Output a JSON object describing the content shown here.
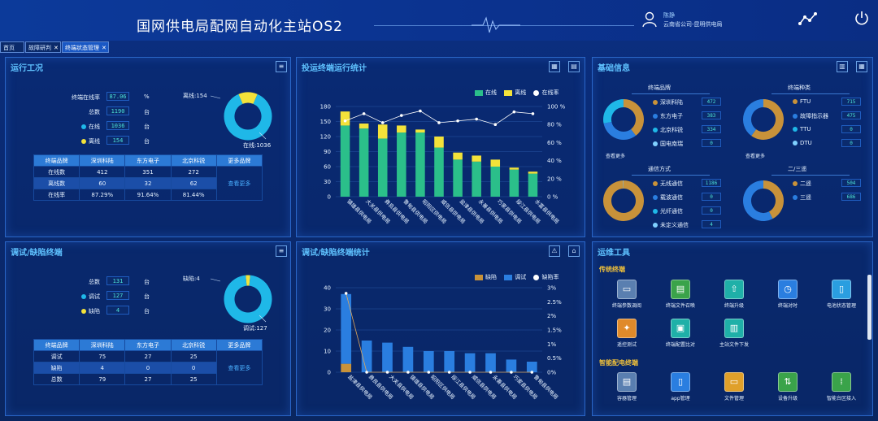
{
  "header": {
    "title": "国网供电局配网自动化主站OS2",
    "user_name": "陈静",
    "user_org": "云南省公司-昆明供电局"
  },
  "tabs": [
    {
      "label": "首页"
    },
    {
      "label": "故障研判"
    },
    {
      "label": "终端状态管理"
    }
  ],
  "panel_run": {
    "title": "运行工况",
    "rows": [
      {
        "label": "终端在线率",
        "value": "87.06",
        "unit": "%"
      },
      {
        "label": "总数",
        "value": "1190",
        "unit": "台"
      },
      {
        "label": "在线",
        "value": "1036",
        "unit": "台"
      },
      {
        "label": "离线",
        "value": "154",
        "unit": "台"
      }
    ],
    "donut": {
      "offline_label": "离线:154",
      "online_label": "在线:1036",
      "offline": 154,
      "online": 1036
    },
    "table": {
      "headers": [
        "终端品牌",
        "深圳科陆",
        "东方电子",
        "北京科锐",
        "更多品牌"
      ],
      "rows": [
        {
          "name": "在线数",
          "vals": [
            "412",
            "351",
            "272"
          ]
        },
        {
          "name": "离线数",
          "vals": [
            "60",
            "32",
            "62"
          ]
        },
        {
          "name": "在线率",
          "vals": [
            "87.29%",
            "91.64%",
            "81.44%"
          ]
        }
      ],
      "more": "查看更多"
    }
  },
  "panel_debug": {
    "title": "调试/缺陷终端",
    "rows": [
      {
        "label": "总数",
        "value": "131",
        "unit": "台"
      },
      {
        "label": "调试",
        "value": "127",
        "unit": "台"
      },
      {
        "label": "缺陷",
        "value": "4",
        "unit": "台"
      }
    ],
    "donut": {
      "defect_label": "缺陷:4",
      "debug_label": "调试:127",
      "defect": 4,
      "debug": 127
    },
    "table": {
      "headers": [
        "终端品牌",
        "深圳科陆",
        "东方电子",
        "北京科锐",
        "更多品牌"
      ],
      "rows": [
        {
          "name": "调试",
          "vals": [
            "75",
            "27",
            "25"
          ]
        },
        {
          "name": "缺陷",
          "vals": [
            "4",
            "0",
            "0"
          ]
        },
        {
          "name": "总数",
          "vals": [
            "79",
            "27",
            "25"
          ]
        }
      ],
      "more": "查看更多"
    }
  },
  "chart_run": {
    "title": "投运终端运行统计",
    "legend": [
      "在线",
      "离线",
      "在线率"
    ],
    "colors": {
      "online": "#2bbf8a",
      "offline": "#f3e23a",
      "rate": "#ffffff"
    },
    "chart_data": {
      "type": "bar",
      "categories": [
        "镇雄县供电局",
        "大关县供电局",
        "彝良县供电局",
        "鲁甸县供电局",
        "昭阳区供电局",
        "威信县供电局",
        "盐津县供电局",
        "永善县供电局",
        "巧家县供电局",
        "绥江县供电局",
        "水富县供电局"
      ],
      "series": [
        {
          "name": "在线",
          "values": [
            142,
            136,
            116,
            128,
            128,
            98,
            74,
            70,
            60,
            54,
            46
          ]
        },
        {
          "name": "离线",
          "values": [
            28,
            10,
            28,
            14,
            6,
            22,
            14,
            12,
            14,
            4,
            4
          ]
        },
        {
          "name": "在线率",
          "values": [
            84,
            92,
            82,
            90,
            95,
            82,
            84,
            86,
            80,
            94,
            92
          ]
        }
      ],
      "ylim": [
        0,
        180
      ],
      "y_ticks": [
        0,
        30,
        60,
        90,
        120,
        150,
        180
      ],
      "y2_ticks": [
        "0 %",
        "20 %",
        "40 %",
        "60 %",
        "80 %",
        "100 %"
      ]
    }
  },
  "chart_debug": {
    "title": "调试/缺陷终端统计",
    "legend": [
      "缺陷",
      "调试",
      "缺陷率"
    ],
    "colors": {
      "defect": "#c8923a",
      "debug": "#2a7ee0",
      "rate": "#ffffff"
    },
    "chart_data": {
      "type": "bar",
      "categories": [
        "盐津县供电局",
        "彝良县供电局",
        "大关县供电局",
        "镇雄县供电局",
        "昭阳区供电局",
        "绥江县供电局",
        "威信县供电局",
        "永善县供电局",
        "巧家县供电局",
        "鲁甸县供电局"
      ],
      "series": [
        {
          "name": "缺陷",
          "values": [
            4,
            0,
            0,
            0,
            0,
            0,
            0,
            0,
            0,
            0
          ]
        },
        {
          "name": "调试",
          "values": [
            33,
            15,
            14,
            12,
            10,
            10,
            9,
            9,
            6,
            5
          ]
        },
        {
          "name": "缺陷率",
          "values": [
            2.8,
            0,
            0,
            0,
            0,
            0,
            0,
            0,
            0,
            0
          ]
        }
      ],
      "ylim": [
        0,
        40
      ],
      "y_ticks": [
        0,
        10,
        20,
        30,
        40
      ],
      "y2_ticks": [
        "0%",
        "0.5%",
        "1%",
        "1.5%",
        "2%",
        "2.5%",
        "3%"
      ]
    }
  },
  "panel_info": {
    "title": "基础信息",
    "brand": {
      "title": "终端品牌",
      "items": [
        {
          "name": "深圳科陆",
          "value": "472",
          "color": "#c8923a"
        },
        {
          "name": "东方电子",
          "value": "383",
          "color": "#2a7ee0"
        },
        {
          "name": "北京科锐",
          "value": "334",
          "color": "#1fb8e8"
        },
        {
          "name": "国电南瑞",
          "value": "0",
          "color": "#7fd0ff"
        }
      ],
      "more": "查看更多"
    },
    "kind": {
      "title": "终端种类",
      "items": [
        {
          "name": "FTU",
          "value": "715",
          "color": "#c8923a"
        },
        {
          "name": "故障指示器",
          "value": "475",
          "color": "#2a7ee0"
        },
        {
          "name": "TTU",
          "value": "0",
          "color": "#1fb8e8"
        },
        {
          "name": "DTU",
          "value": "0",
          "color": "#7fd0ff"
        }
      ],
      "more": "查看更多"
    },
    "comm": {
      "title": "通信方式",
      "items": [
        {
          "name": "无线通信",
          "value": "1186",
          "color": "#c8923a"
        },
        {
          "name": "载波通信",
          "value": "0",
          "color": "#2a7ee0"
        },
        {
          "name": "光纤通信",
          "value": "0",
          "color": "#1fb8e8"
        },
        {
          "name": "未定义通信",
          "value": "4",
          "color": "#7fd0ff"
        }
      ]
    },
    "remote": {
      "title": "二/三遥",
      "items": [
        {
          "name": "二遥",
          "value": "504",
          "color": "#c8923a"
        },
        {
          "name": "三遥",
          "value": "686",
          "color": "#2a7ee0"
        }
      ]
    }
  },
  "panel_tools": {
    "title": "运维工具",
    "sec1": "传统终端",
    "sec2": "智能配电终端",
    "tools1": [
      {
        "label": "终端参数调阅",
        "color": "#5a7fb0"
      },
      {
        "label": "终端文件召唤",
        "color": "#3aa34a"
      },
      {
        "label": "终端升级",
        "color": "#1fb0a8"
      },
      {
        "label": "终端对时",
        "color": "#2a7ee0"
      },
      {
        "label": "电池状态管理",
        "color": "#2a9ee0"
      },
      {
        "label": "遥控测试",
        "color": "#e08a2a"
      },
      {
        "label": "终端配置比对",
        "color": "#1fb0a8"
      },
      {
        "label": "主站文件下发",
        "color": "#1fb0a8"
      }
    ],
    "tools2": [
      {
        "label": "容器管理",
        "color": "#5a7fb0"
      },
      {
        "label": "app管理",
        "color": "#2a7ee0"
      },
      {
        "label": "文件管理",
        "color": "#e0a02a"
      },
      {
        "label": "设备升级",
        "color": "#3aa34a"
      },
      {
        "label": "智能台区接入",
        "color": "#3aa34a"
      }
    ]
  }
}
